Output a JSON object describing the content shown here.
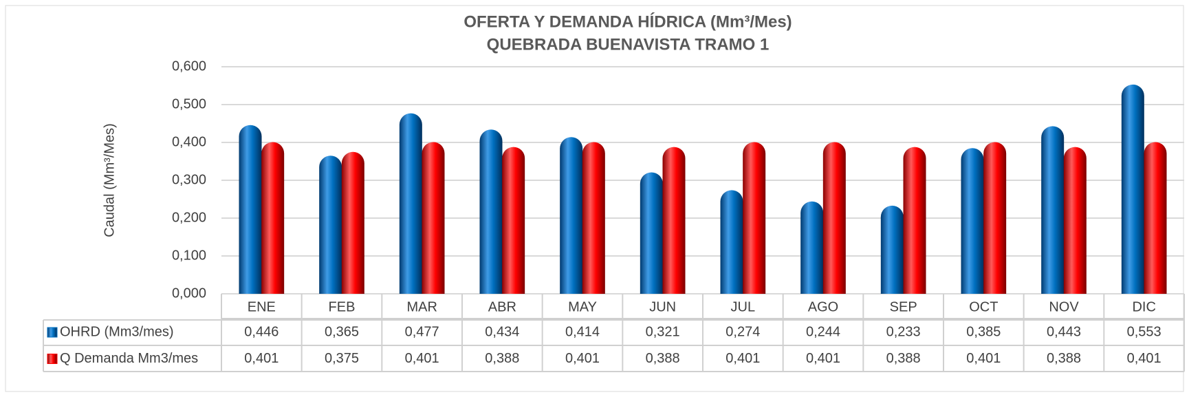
{
  "chart_data": {
    "type": "bar",
    "title": [
      "OFERTA Y DEMANDA HÍDRICA (Mm³/Mes)",
      "QUEBRADA BUENAVISTA TRAMO 1"
    ],
    "y_label": "Caudal (Mm³/Mes)",
    "categories": [
      "ENE",
      "FEB",
      "MAR",
      "ABR",
      "MAY",
      "JUN",
      "JUL",
      "AGO",
      "SEP",
      "OCT",
      "NOV",
      "DIC"
    ],
    "series": [
      {
        "name": "OHRD (Mm3/mes)",
        "color": "#0070c0",
        "values": [
          0.446,
          0.365,
          0.477,
          0.434,
          0.414,
          0.321,
          0.274,
          0.244,
          0.233,
          0.385,
          0.443,
          0.553
        ],
        "value_labels": [
          "0,446",
          "0,365",
          "0,477",
          "0,434",
          "0,414",
          "0,321",
          "0,274",
          "0,244",
          "0,233",
          "0,385",
          "0,443",
          "0,553"
        ]
      },
      {
        "name": "Q Demanda Mm3/mes",
        "color": "#ff0000",
        "values": [
          0.401,
          0.375,
          0.401,
          0.388,
          0.401,
          0.388,
          0.401,
          0.401,
          0.388,
          0.401,
          0.388,
          0.401
        ],
        "value_labels": [
          "0,401",
          "0,375",
          "0,401",
          "0,388",
          "0,401",
          "0,388",
          "0,401",
          "0,401",
          "0,388",
          "0,401",
          "0,388",
          "0,401"
        ]
      }
    ],
    "ylim": [
      0,
      0.6
    ],
    "yticks": [
      {
        "value": 0,
        "label": "0,000"
      },
      {
        "value": 0.1,
        "label": "0,100"
      },
      {
        "value": 0.2,
        "label": "0,200"
      },
      {
        "value": 0.3,
        "label": "0,300"
      },
      {
        "value": 0.4,
        "label": "0,400"
      },
      {
        "value": 0.5,
        "label": "0,500"
      },
      {
        "value": 0.6,
        "label": "0,600"
      }
    ],
    "grid": true,
    "legend": "table"
  }
}
